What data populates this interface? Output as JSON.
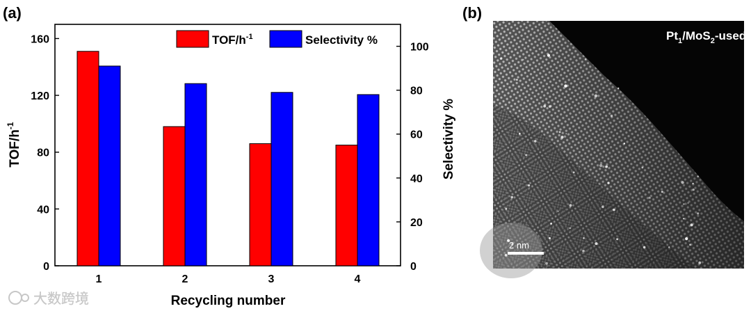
{
  "panels": {
    "a_label": "(a)",
    "b_label": "(b)"
  },
  "chart_data": {
    "type": "bar",
    "title": "",
    "xlabel": "Recycling number",
    "ylabel": "TOF/h",
    "ylabel_sup": "-1",
    "y2label": "Selectivity %",
    "categories": [
      "1",
      "2",
      "3",
      "4"
    ],
    "ylim": [
      0,
      170
    ],
    "yticks": [
      0,
      40,
      80,
      120,
      160
    ],
    "y2lim": [
      0,
      110
    ],
    "y2ticks": [
      0,
      20,
      40,
      60,
      80,
      100
    ],
    "series": [
      {
        "name": "TOF/h",
        "name_sup": "-1",
        "axis": "left",
        "color": "#ff0000",
        "values": [
          151,
          98,
          86,
          85
        ]
      },
      {
        "name": "Selectivity %",
        "axis": "right",
        "color": "#0000ff",
        "values": [
          91,
          83,
          79,
          78
        ]
      }
    ],
    "legend_position": "top-right"
  },
  "micrograph": {
    "label_main": "Pt",
    "label_sub1": "1",
    "label_mid": "/MoS",
    "label_sub2": "2",
    "label_end": "-used",
    "scale_bar": "2 nm"
  },
  "watermark": "大数跨境"
}
